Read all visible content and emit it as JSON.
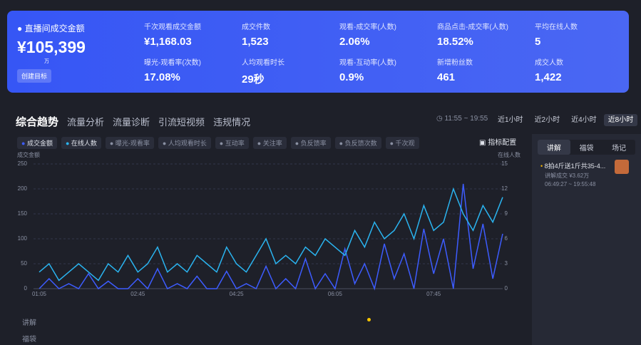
{
  "summary": {
    "title": "直播间成交金额",
    "value": "¥105,399",
    "unit": "万",
    "button": "创建目标",
    "metrics": [
      {
        "label": "千次观看成交金额",
        "value": "¥1,168.03"
      },
      {
        "label": "成交件数",
        "value": "1,523"
      },
      {
        "label": "观看-成交率(人数)",
        "value": "2.06%"
      },
      {
        "label": "商品点击-成交率(人数)",
        "value": "18.52%"
      },
      {
        "label": "平均在线人数",
        "value": "5"
      },
      {
        "label": "曝光-观看率(次数)",
        "value": "17.08%"
      },
      {
        "label": "人均观看时长",
        "value": "29秒"
      },
      {
        "label": "观看-互动率(人数)",
        "value": "0.9%"
      },
      {
        "label": "新增粉丝数",
        "value": "461"
      },
      {
        "label": "成交人数",
        "value": "1,422"
      }
    ]
  },
  "tabs": [
    "综合趋势",
    "流量分析",
    "流量诊断",
    "引流短视频",
    "违规情况"
  ],
  "time_range": "11:55 ~ 19:55",
  "range_buttons": [
    "近1小时",
    "近2小时",
    "近4小时",
    "近8小时"
  ],
  "legend_extra": [
    "曝光-观看率",
    "人均观看时长",
    "互动率",
    "关注率",
    "负反馈率",
    "负反馈次数",
    "千次观"
  ],
  "config_button": "指标配置",
  "chart_data": {
    "type": "line",
    "y_title": "成交金额",
    "y2_title": "在线人数",
    "categories": [
      "01:05",
      null,
      null,
      null,
      null,
      null,
      null,
      null,
      null,
      null,
      "02:45",
      null,
      null,
      null,
      null,
      null,
      null,
      null,
      null,
      null,
      "04:25",
      null,
      null,
      null,
      null,
      null,
      null,
      null,
      null,
      null,
      "06:05",
      null,
      null,
      null,
      null,
      null,
      null,
      null,
      null,
      null,
      "07:45",
      null,
      null,
      null,
      null,
      null,
      null,
      null
    ],
    "series": [
      {
        "name": "成交金额",
        "color": "#3d5cff",
        "values": [
          0,
          20,
          0,
          10,
          0,
          30,
          0,
          15,
          0,
          0,
          20,
          0,
          40,
          0,
          10,
          0,
          25,
          0,
          0,
          35,
          0,
          10,
          0,
          45,
          0,
          20,
          0,
          60,
          0,
          30,
          0,
          80,
          10,
          50,
          0,
          90,
          20,
          70,
          0,
          120,
          30,
          100,
          0,
          210,
          40,
          130,
          20,
          110
        ]
      },
      {
        "name": "在线人数",
        "color": "#2ab4f0",
        "axis": "y2",
        "values": [
          2,
          3,
          1,
          2,
          3,
          2,
          1,
          3,
          2,
          4,
          2,
          3,
          5,
          2,
          3,
          2,
          4,
          3,
          2,
          5,
          3,
          2,
          4,
          6,
          3,
          4,
          3,
          5,
          4,
          6,
          5,
          4,
          7,
          5,
          8,
          6,
          7,
          9,
          6,
          10,
          7,
          8,
          12,
          9,
          7,
          10,
          8,
          11
        ]
      }
    ],
    "ylim": [
      0,
      250
    ],
    "yticks": [
      0,
      50,
      100,
      150,
      200,
      250
    ],
    "y2lim": [
      0,
      15
    ],
    "y2ticks": [
      0,
      3,
      6,
      9,
      12,
      15
    ],
    "grid": true
  },
  "side_panel": {
    "tabs": [
      "讲解",
      "福袋",
      "场记"
    ],
    "item": {
      "title": "8拍4斤送1斤共35-4...",
      "sub": "讲解成交 ¥3.62万",
      "time": "06:49:27 ~ 19:55:48"
    }
  },
  "timeline_rows": [
    "讲解",
    "福袋"
  ]
}
